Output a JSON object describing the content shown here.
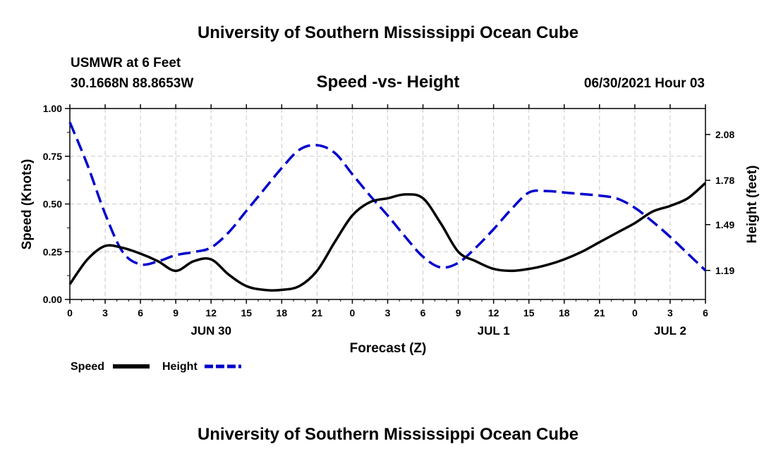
{
  "header": {
    "title": "University of Southern Mississippi Ocean Cube",
    "station": "USMWR at 6 Feet",
    "coords": "30.1668N  88.8653W",
    "datetime": "06/30/2021 Hour 03"
  },
  "footer": {
    "title": "University of Southern Mississippi Ocean Cube"
  },
  "colors": {
    "speed": "#000000",
    "height": "#0000cc"
  },
  "chart_data": {
    "type": "line",
    "title": "Speed -vs- Height",
    "xlabel": "Forecast (Z)",
    "ylabel": "Speed (Knots)",
    "y2label": "Height (feet)",
    "xlim": [
      0,
      54
    ],
    "ylim": [
      0,
      1.0
    ],
    "y2lim": [
      1.0,
      2.25
    ],
    "grid": true,
    "x_tick_values": [
      0,
      3,
      6,
      9,
      12,
      15,
      18,
      21,
      24,
      27,
      30,
      33,
      36,
      39,
      42,
      45,
      48,
      51,
      54
    ],
    "x_tick_labels": [
      "0",
      "3",
      "6",
      "9",
      "12",
      "15",
      "18",
      "21",
      "0",
      "3",
      "6",
      "9",
      "12",
      "15",
      "18",
      "21",
      "0",
      "3",
      "6"
    ],
    "y_tick_values": [
      0,
      0.25,
      0.5,
      0.75,
      1.0
    ],
    "y_tick_labels": [
      "0.00",
      "0.25",
      "0.50",
      "0.75",
      "1.00"
    ],
    "y2_tick_values": [
      1.19,
      1.49,
      1.78,
      2.08
    ],
    "y2_tick_labels": [
      "1.19",
      "1.49",
      "1.78",
      "2.08"
    ],
    "date_labels": [
      {
        "x": 12,
        "label": "JUN 30"
      },
      {
        "x": 36,
        "label": "JUL 1"
      },
      {
        "x": 51,
        "label": "JUL 2"
      }
    ],
    "legend_position": "bottom-left",
    "series": [
      {
        "name": "Speed",
        "axis": "left",
        "style": "solid",
        "x": [
          0,
          1.5,
          3,
          4.5,
          6,
          7.5,
          9,
          10.5,
          12,
          13.5,
          15,
          16.5,
          18,
          19.5,
          21,
          22.5,
          24,
          25.5,
          27,
          28.5,
          30,
          31.5,
          33,
          34.5,
          36,
          37.5,
          39,
          40.5,
          42,
          43.5,
          45,
          46.5,
          48,
          49.5,
          51,
          52.5,
          54
        ],
        "values": [
          0.08,
          0.21,
          0.28,
          0.27,
          0.24,
          0.2,
          0.15,
          0.2,
          0.21,
          0.13,
          0.07,
          0.05,
          0.05,
          0.07,
          0.15,
          0.3,
          0.44,
          0.51,
          0.53,
          0.55,
          0.53,
          0.4,
          0.25,
          0.2,
          0.16,
          0.15,
          0.16,
          0.18,
          0.21,
          0.25,
          0.3,
          0.35,
          0.4,
          0.46,
          0.49,
          0.53,
          0.61
        ]
      },
      {
        "name": "Height",
        "axis": "right",
        "style": "dashed",
        "x": [
          0,
          1.5,
          3,
          4.5,
          6,
          7.5,
          9,
          10.5,
          12,
          13.5,
          15,
          16.5,
          18,
          19.5,
          21,
          22.5,
          24,
          25.5,
          27,
          28.5,
          30,
          31.5,
          33,
          34.5,
          36,
          37.5,
          39,
          40.5,
          42,
          43.5,
          45,
          46.5,
          48,
          49.5,
          51,
          52.5,
          54
        ],
        "values": [
          2.16,
          1.88,
          1.56,
          1.31,
          1.23,
          1.25,
          1.29,
          1.31,
          1.34,
          1.44,
          1.58,
          1.72,
          1.86,
          1.98,
          2.01,
          1.96,
          1.82,
          1.68,
          1.55,
          1.41,
          1.28,
          1.21,
          1.24,
          1.34,
          1.46,
          1.59,
          1.7,
          1.71,
          1.7,
          1.69,
          1.68,
          1.66,
          1.6,
          1.51,
          1.41,
          1.3,
          1.19
        ]
      }
    ]
  }
}
